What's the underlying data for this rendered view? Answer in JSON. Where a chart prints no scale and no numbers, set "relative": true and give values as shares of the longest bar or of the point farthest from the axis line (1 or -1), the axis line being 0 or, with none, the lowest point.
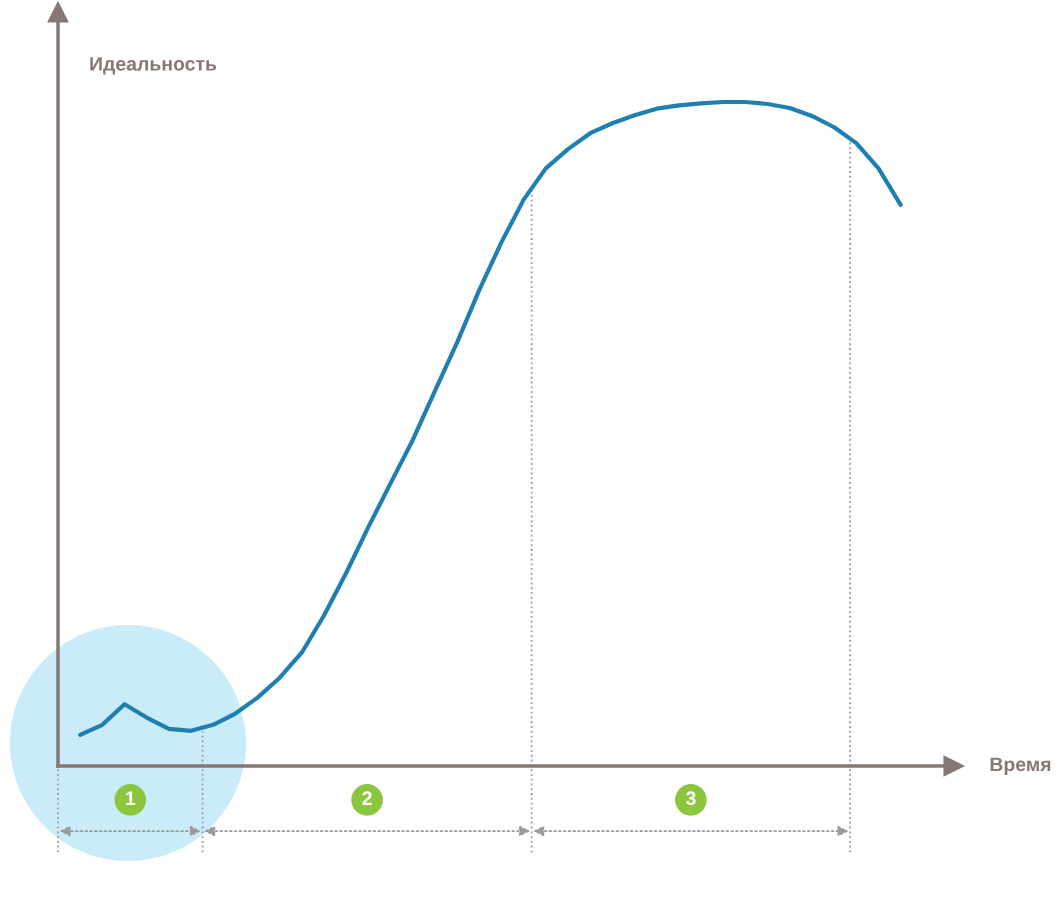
{
  "chart_data": {
    "type": "line",
    "relative": true,
    "xlabel": "Время",
    "ylabel": "Идеальность",
    "marker": "none",
    "line_style": "solid",
    "categories": [
      null,
      null,
      null,
      null,
      null,
      null,
      null,
      null,
      null,
      null,
      null,
      null,
      null,
      null,
      null,
      null,
      null,
      null,
      null,
      null,
      null,
      null,
      null,
      null,
      null,
      null,
      null,
      null,
      null,
      null,
      null,
      null,
      null,
      null,
      null,
      null,
      null,
      null,
      null,
      null,
      null
    ],
    "series": [
      {
        "color": "#1f7fb0",
        "values": [
          null,
          0.047,
          0.062,
          0.093,
          0.073,
          0.056,
          0.053,
          0.062,
          0.079,
          0.103,
          0.133,
          0.171,
          0.227,
          0.291,
          0.36,
          0.426,
          0.491,
          0.565,
          0.638,
          0.717,
          0.789,
          0.853,
          0.9,
          0.929,
          0.953,
          0.968,
          0.98,
          0.99,
          0.995,
          0.998,
          1.0,
          1.0,
          0.997,
          0.991,
          0.979,
          0.962,
          0.938,
          0.9,
          0.845,
          null,
          null
        ]
      }
    ],
    "annotations": [
      "1",
      "2",
      "3"
    ]
  }
}
